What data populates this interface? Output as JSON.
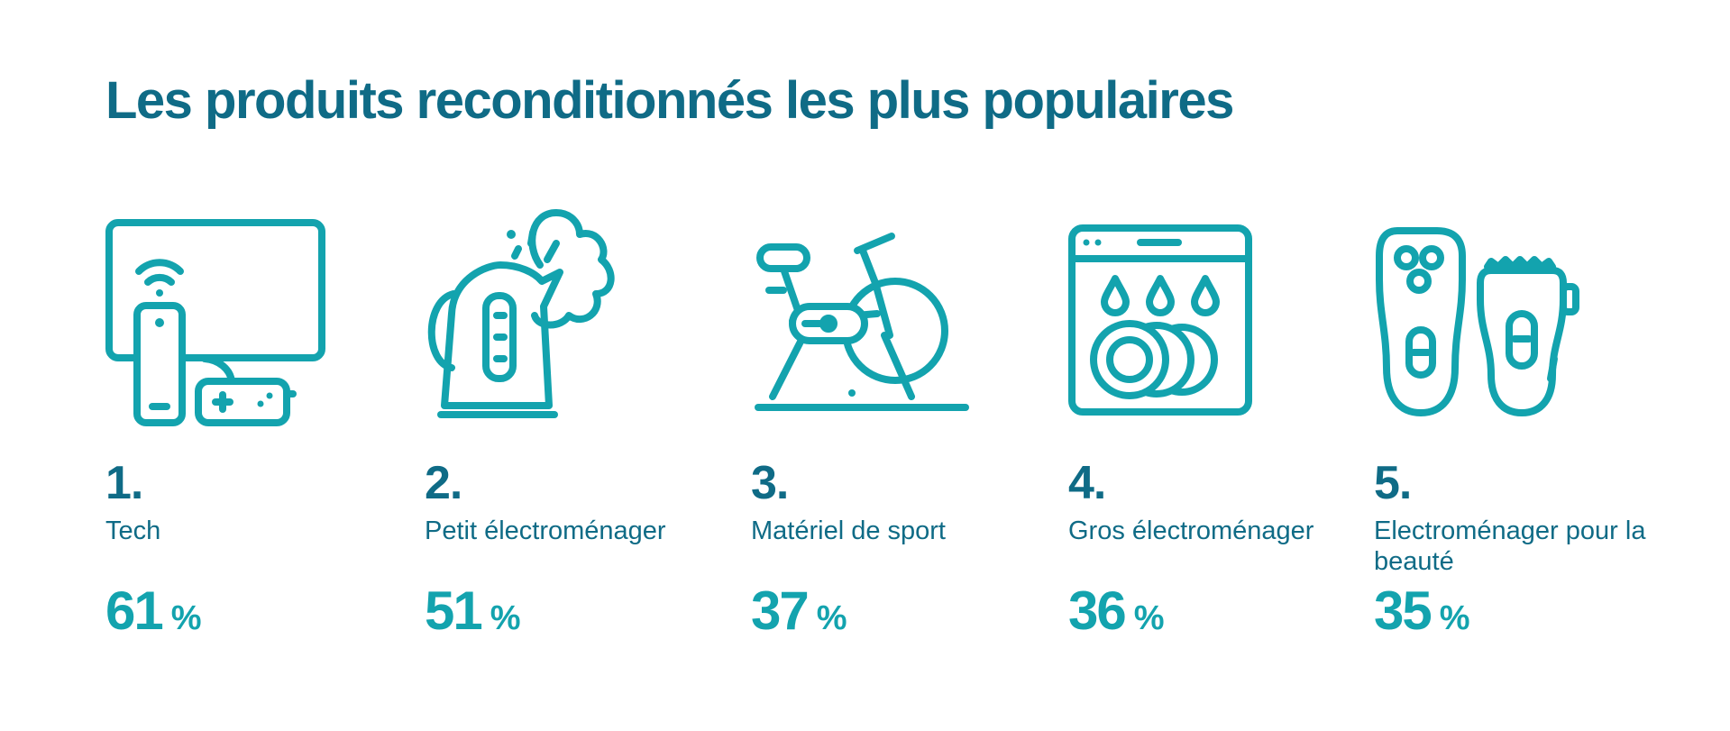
{
  "title": "Les produits reconditionnés les plus populaires",
  "colors": {
    "title": "#0f6b86",
    "accent": "#13a3ae"
  },
  "items": [
    {
      "rank": "1.",
      "label": "Tech",
      "value": "61",
      "unit": "%",
      "icon": "tech-devices-icon"
    },
    {
      "rank": "2.",
      "label": "Petit électroménager",
      "value": "51",
      "unit": "%",
      "icon": "kettle-icon"
    },
    {
      "rank": "3.",
      "label": "Matériel de sport",
      "value": "37",
      "unit": "%",
      "icon": "exercise-bike-icon"
    },
    {
      "rank": "4.",
      "label": "Gros électroménager",
      "value": "36",
      "unit": "%",
      "icon": "dishwasher-icon"
    },
    {
      "rank": "5.",
      "label": "Electroménager pour la beauté",
      "value": "35",
      "unit": "%",
      "icon": "shavers-icon"
    }
  ]
}
